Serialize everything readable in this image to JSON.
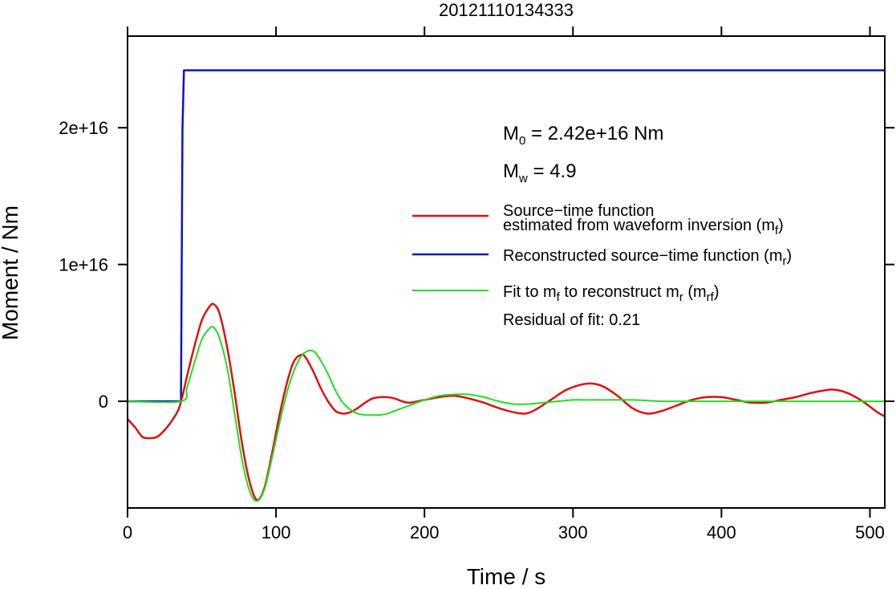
{
  "chart_data": {
    "type": "line",
    "title": "20121110134333",
    "xlabel": "Time / s",
    "ylabel": "Moment / Nm",
    "xlim": [
      0,
      510
    ],
    "ylim": [
      -7800000000000000.0,
      2.67e+16
    ],
    "x_ticks": [
      0,
      100,
      200,
      300,
      400,
      500
    ],
    "x_tick_labels": [
      "0",
      "100",
      "200",
      "300",
      "400",
      "500"
    ],
    "y_ticks": [
      0,
      1e+16,
      2e+16
    ],
    "y_tick_labels": [
      "0",
      "1e+16",
      "2e+16"
    ],
    "grid": false,
    "annotations": {
      "m0": {
        "base": "M",
        "sub": "0",
        "text": " = 2.42e+16 Nm"
      },
      "mw": {
        "base": "M",
        "sub": "w",
        "text": " = 4.9"
      }
    },
    "legend": {
      "position": "right",
      "entries": [
        {
          "line1": "Source−time function",
          "line2": "estimated from waveform inversion (m",
          "sub": "f",
          "end": ")"
        },
        {
          "text": "Reconstructed source−time function (m",
          "sub": "r",
          "end": ")"
        },
        {
          "text1": "Fit to m",
          "sub1": "f",
          "text2": " to reconstruct m",
          "sub2": "r",
          "text3": " (m",
          "sub3": "rf",
          "end": ")"
        }
      ],
      "residual": "Residual of fit: 0.21"
    },
    "series": [
      {
        "key": "mf",
        "color": "#dd1111",
        "x": [
          0,
          5,
          10,
          15,
          20,
          25,
          30,
          35,
          40,
          45,
          50,
          55,
          58,
          62,
          67,
          72,
          77,
          82,
          87,
          92,
          97,
          102,
          107,
          112,
          117,
          120,
          125,
          130,
          135,
          140,
          145,
          150,
          155,
          160,
          165,
          170,
          175,
          180,
          185,
          190,
          200,
          210,
          220,
          230,
          240,
          250,
          260,
          268,
          275,
          285,
          295,
          305,
          312,
          320,
          330,
          340,
          350,
          360,
          370,
          380,
          390,
          400,
          410,
          420,
          430,
          440,
          450,
          460,
          470,
          476,
          485,
          495,
          505,
          510
        ],
        "y": [
          -1300000000000000.0,
          -1900000000000000.0,
          -2600000000000000.0,
          -2700000000000000.0,
          -2600000000000000.0,
          -2100000000000000.0,
          -1400000000000000.0,
          -400000000000000.0,
          1800000000000000.0,
          4000000000000000.0,
          5900000000000000.0,
          6900000000000000.0,
          7100000000000000.0,
          6400000000000000.0,
          4000000000000000.0,
          700000000000000.0,
          -3000000000000000.0,
          -5800000000000000.0,
          -7200000000000000.0,
          -6400000000000000.0,
          -4000000000000000.0,
          -1200000000000000.0,
          1200000000000000.0,
          2900000000000000.0,
          3400000000000000.0,
          3200000000000000.0,
          2200000000000000.0,
          1000000000000000.0,
          0,
          -700000000000000.0,
          -900000000000000.0,
          -800000000000000.0,
          -500000000000000.0,
          -100000000000000.0,
          200000000000000.0,
          300000000000000.0,
          300000000000000.0,
          200000000000000.0,
          0,
          -100000000000000.0,
          100000000000000.0,
          300000000000000.0,
          400000000000000.0,
          200000000000000.0,
          -100000000000000.0,
          -500000000000000.0,
          -800000000000000.0,
          -900000000000000.0,
          -600000000000000.0,
          100000000000000.0,
          800000000000000.0,
          1200000000000000.0,
          1300000000000000.0,
          1100000000000000.0,
          400000000000000.0,
          -500000000000000.0,
          -900000000000000.0,
          -700000000000000.0,
          -300000000000000.0,
          100000000000000.0,
          300000000000000.0,
          300000000000000.0,
          100000000000000.0,
          -100000000000000.0,
          -100000000000000.0,
          100000000000000.0,
          300000000000000.0,
          600000000000000.0,
          800000000000000.0,
          850000000000000.0,
          600000000000000.0,
          0,
          -800000000000000.0,
          -1100000000000000.0
        ]
      },
      {
        "key": "mr",
        "color": "#0a14c8",
        "x": [
          0,
          36,
          37,
          38,
          40,
          510
        ],
        "y": [
          0,
          0,
          2e+16,
          2.42e+16,
          2.42e+16,
          2.42e+16
        ]
      },
      {
        "key": "mrf",
        "color": "#22dd22",
        "x": [
          0,
          36,
          40,
          45,
          50,
          55,
          58,
          62,
          67,
          72,
          77,
          82,
          87,
          92,
          97,
          102,
          107,
          112,
          117,
          122,
          126,
          130,
          135,
          140,
          145,
          150,
          155,
          160,
          165,
          170,
          175,
          180,
          190,
          200,
          210,
          220,
          230,
          240,
          250,
          260,
          270,
          280,
          290,
          300,
          310,
          320,
          340,
          360,
          380,
          400,
          420,
          450,
          480,
          510
        ],
        "y": [
          0,
          0,
          1000000000000000.0,
          2800000000000000.0,
          4500000000000000.0,
          5300000000000000.0,
          5400000000000000.0,
          4600000000000000.0,
          2500000000000000.0,
          -800000000000000.0,
          -4200000000000000.0,
          -6500000000000000.0,
          -7300000000000000.0,
          -6500000000000000.0,
          -4300000000000000.0,
          -1800000000000000.0,
          500000000000000.0,
          2200000000000000.0,
          3300000000000000.0,
          3700000000000000.0,
          3600000000000000.0,
          3000000000000000.0,
          2000000000000000.0,
          800000000000000.0,
          -100000000000000.0,
          -600000000000000.0,
          -900000000000000.0,
          -1000000000000000.0,
          -1000000000000000.0,
          -1000000000000000.0,
          -900000000000000.0,
          -700000000000000.0,
          -300000000000000.0,
          100000000000000.0,
          400000000000000.0,
          500000000000000.0,
          500000000000000.0,
          300000000000000.0,
          0,
          -200000000000000.0,
          -200000000000000.0,
          -100000000000000.0,
          0,
          100000000000000.0,
          100000000000000.0,
          100000000000000.0,
          100000000000000.0,
          0,
          0,
          0,
          0,
          0,
          0,
          0
        ]
      }
    ]
  }
}
